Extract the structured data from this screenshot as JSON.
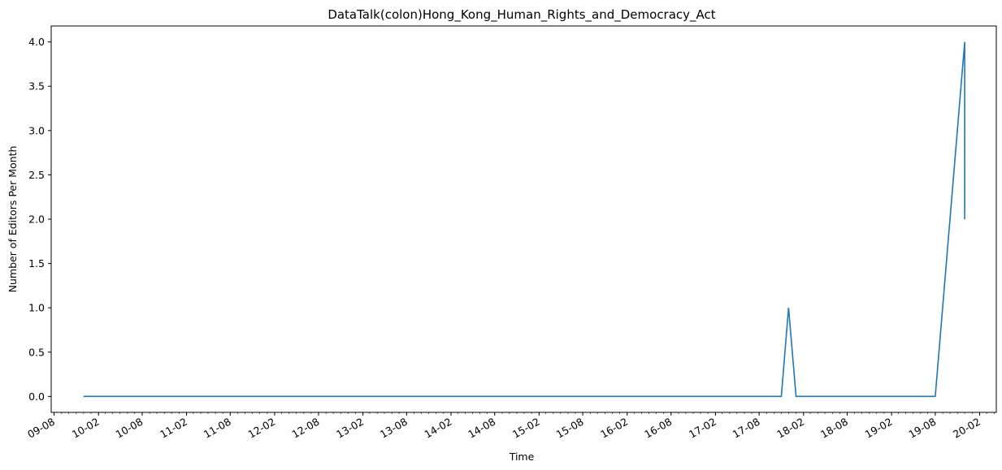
{
  "chart_data": {
    "type": "line",
    "title": "DataTalk(colon)Hong_Kong_Human_Rights_and_Democracy_Act",
    "xlabel": "Time",
    "ylabel": "Number of Editors Per Month",
    "x_ticks": [
      "09-08",
      "10-02",
      "10-08",
      "11-02",
      "11-08",
      "12-02",
      "12-08",
      "13-02",
      "13-08",
      "14-02",
      "14-08",
      "15-02",
      "15-08",
      "16-02",
      "16-08",
      "17-02",
      "17-08",
      "18-02",
      "18-08",
      "19-02",
      "19-08",
      "20-02"
    ],
    "y_ticks": [
      "0.0",
      "0.5",
      "1.0",
      "1.5",
      "2.0",
      "2.5",
      "3.0",
      "3.5",
      "4.0"
    ],
    "xlim": [
      "2009-07-20",
      "2020-04-10"
    ],
    "ylim": [
      -0.18,
      4.18
    ],
    "grid": false,
    "line_color": "#1f77b4",
    "series": [
      {
        "x": [
          "2009-12-01",
          "2017-11-01",
          "2017-12-01",
          "2018-01-01",
          "2019-08-01",
          "2019-12-01",
          "2019-12-01"
        ],
        "values": [
          0,
          0,
          1,
          0,
          0,
          4,
          2
        ]
      }
    ]
  }
}
